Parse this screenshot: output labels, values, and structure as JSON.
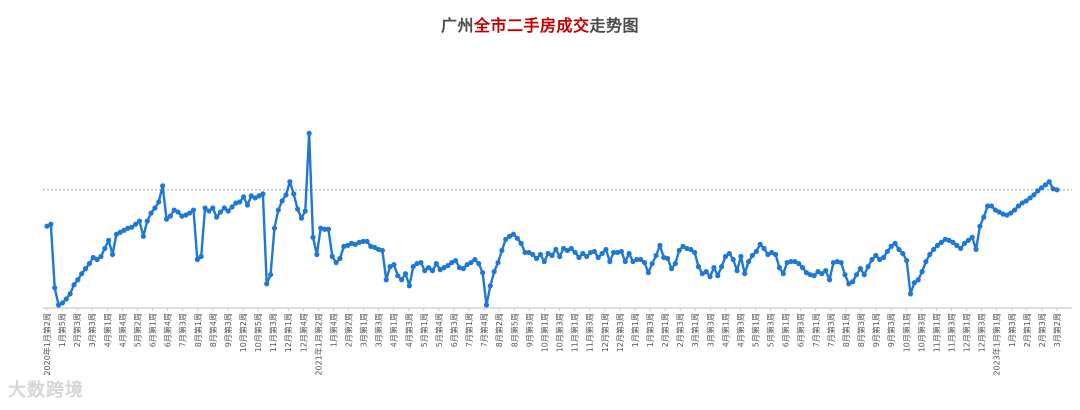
{
  "title": {
    "prefix": "广州",
    "highlight": "全市二手房成交",
    "suffix": "走势图",
    "colors": {
      "normal": "#4a4a4a",
      "highlight": "#c00000"
    }
  },
  "watermark": "大数跨境",
  "colors": {
    "line": "#1f78d6",
    "marker": "#1f78d6",
    "reference": "#808080",
    "axis": "#bfbfbf"
  },
  "chart_data": {
    "type": "line",
    "title": "广州全市二手房成交走势图",
    "xlabel": "",
    "ylabel": "",
    "ylim": [
      0,
      200
    ],
    "grid": false,
    "reference_line": 116,
    "tick_labels": [
      "2020年1月第2周",
      "1月第5周",
      "2月第3周",
      "3月第3周",
      "4月第1周",
      "4月第4周",
      "5月第2周",
      "6月第1周",
      "6月第4周",
      "7月第3周",
      "8月第1周",
      "8月第4周",
      "9月第3周",
      "10月第2周",
      "10月第5周",
      "11月第3周",
      "12月第1周",
      "12月第4周",
      "2021年1月第2周",
      "1月第4周",
      "2月第2周",
      "3月第1周",
      "3月第3周",
      "4月第1周",
      "4月第3周",
      "5月第1周",
      "5月第4周",
      "6月第3周",
      "7月第1周",
      "7月第4周",
      "8月第2周",
      "8月第5周",
      "9月第3周",
      "10月第1周",
      "10月第3周",
      "11月第1周",
      "11月第3周",
      "12月第1周",
      "12月第3周",
      "1月第1周",
      "1月第3周",
      "2月第1周",
      "2月第3周",
      "3月第1周",
      "3月第3周",
      "4月第1周",
      "4月第3周",
      "5月第1周",
      "5月第3周",
      "6月第1周",
      "6月第3周",
      "7月第1周",
      "7月第3周",
      "8月第1周",
      "8月第3周",
      "9月第1周",
      "9月第3周",
      "10月第1周",
      "10月第3周",
      "11月第1周",
      "11月第3周",
      "12月第1周",
      "12月第3周",
      "2023年1月第1周",
      "1月第3周",
      "2月第1周",
      "2月第3周",
      "3月第2周"
    ],
    "values": [
      80,
      82,
      19,
      2,
      4,
      8,
      13,
      22,
      27,
      33,
      38,
      43,
      49,
      47,
      50,
      58,
      66,
      52,
      72,
      74,
      76,
      78,
      79,
      82,
      85,
      70,
      85,
      93,
      98,
      104,
      120,
      87,
      90,
      96,
      94,
      90,
      91,
      93,
      96,
      47,
      50,
      98,
      95,
      98,
      89,
      94,
      98,
      95,
      99,
      103,
      104,
      109,
      101,
      110,
      108,
      110,
      112,
      23,
      32,
      78,
      96,
      105,
      111,
      124,
      112,
      97,
      88,
      95,
      172,
      69,
      52,
      78,
      77,
      77,
      50,
      44,
      48,
      60,
      61,
      63,
      62,
      64,
      65,
      65,
      60,
      59,
      57,
      56,
      27,
      40,
      42,
      31,
      27,
      33,
      21,
      40,
      43,
      44,
      36,
      39,
      36,
      43,
      37,
      39,
      41,
      44,
      46,
      39,
      38,
      42,
      44,
      47,
      43,
      34,
      2,
      21,
      35,
      44,
      56,
      67,
      70,
      72,
      68,
      63,
      54,
      54,
      52,
      48,
      52,
      45,
      53,
      51,
      57,
      50,
      58,
      56,
      58,
      54,
      49,
      53,
      50,
      54,
      55,
      49,
      53,
      57,
      45,
      54,
      54,
      55,
      45,
      53,
      45,
      47,
      47,
      44,
      34,
      43,
      51,
      61,
      49,
      48,
      38,
      43,
      56,
      60,
      58,
      57,
      54,
      40,
      33,
      35,
      30,
      39,
      31,
      40,
      50,
      53,
      47,
      36,
      50,
      33,
      45,
      51,
      55,
      62,
      58,
      52,
      54,
      52,
      39,
      33,
      44,
      45,
      45,
      43,
      39,
      34,
      32,
      31,
      35,
      33,
      36,
      27,
      44,
      45,
      44,
      32,
      23,
      25,
      32,
      38,
      32,
      40,
      47,
      51,
      47,
      49,
      55,
      60,
      63,
      57,
      53,
      46,
      13,
      24,
      27,
      35,
      45,
      52,
      57,
      61,
      64,
      67,
      66,
      64,
      61,
      58,
      63,
      66,
      69,
      57,
      80,
      89,
      100,
      100,
      96,
      94,
      92,
      91,
      93,
      96,
      100,
      103,
      105,
      108,
      111,
      115,
      118,
      121,
      124,
      117,
      116
    ]
  }
}
